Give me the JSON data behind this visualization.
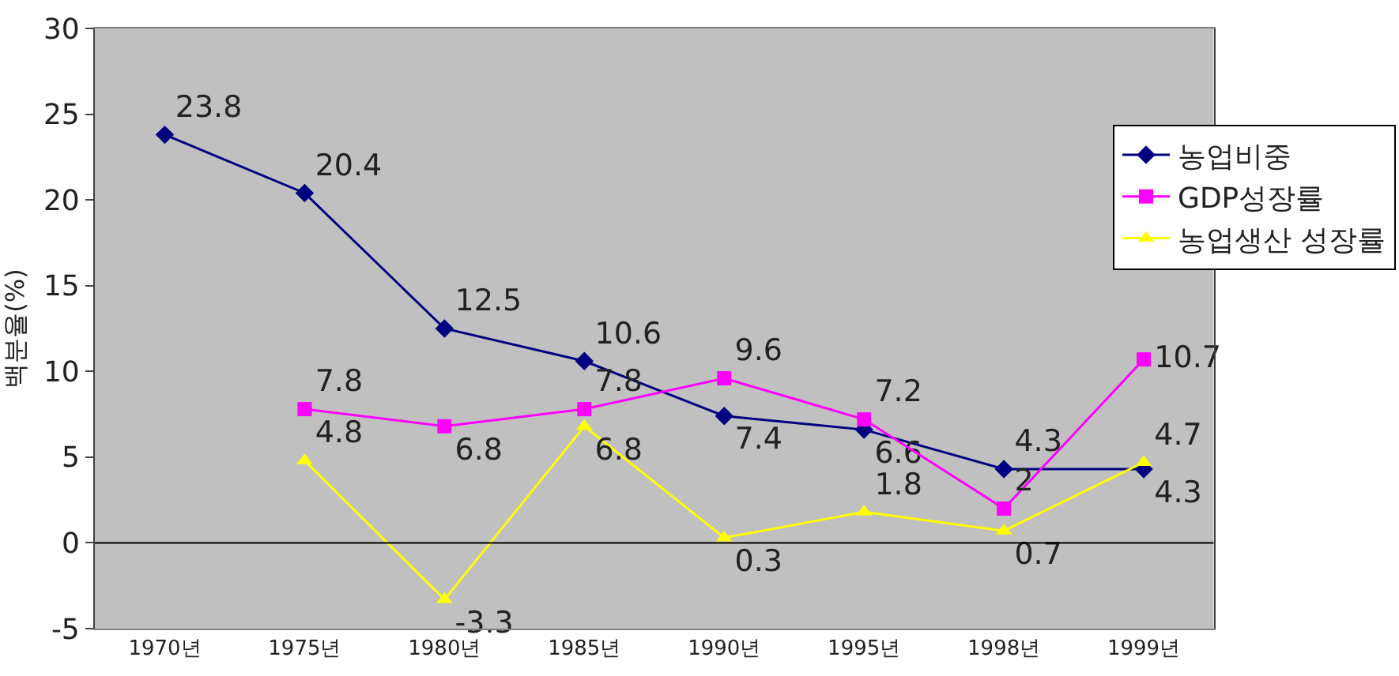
{
  "chart_data": {
    "type": "line",
    "ylabel": "백분율(%)",
    "categories": [
      "1970년",
      "1975년",
      "1980년",
      "1985년",
      "1990년",
      "1995년",
      "1998년",
      "1999년"
    ],
    "series": [
      {
        "name": "농업비중",
        "color": "#000080",
        "marker": "diamond",
        "values": [
          23.8,
          20.4,
          12.5,
          10.6,
          7.4,
          6.6,
          4.3,
          4.3
        ]
      },
      {
        "name": "GDP성장률",
        "color": "#ff00ff",
        "marker": "square",
        "values": [
          null,
          7.8,
          6.8,
          7.8,
          9.6,
          7.2,
          2,
          10.7
        ]
      },
      {
        "name": "농업생산 성장률",
        "color": "#ffff00",
        "marker": "triangle",
        "values": [
          null,
          4.8,
          -3.3,
          6.8,
          0.3,
          1.8,
          0.7,
          4.7
        ]
      }
    ],
    "ylim": [
      -5,
      30
    ],
    "yticks": [
      -5,
      0,
      5,
      10,
      15,
      20,
      25,
      30
    ],
    "ref_lines": [
      {
        "axis": "y",
        "value": 0,
        "color": "#000000"
      }
    ],
    "grid": false,
    "legend": "top right",
    "data_labels": true,
    "line_style": "solid"
  }
}
